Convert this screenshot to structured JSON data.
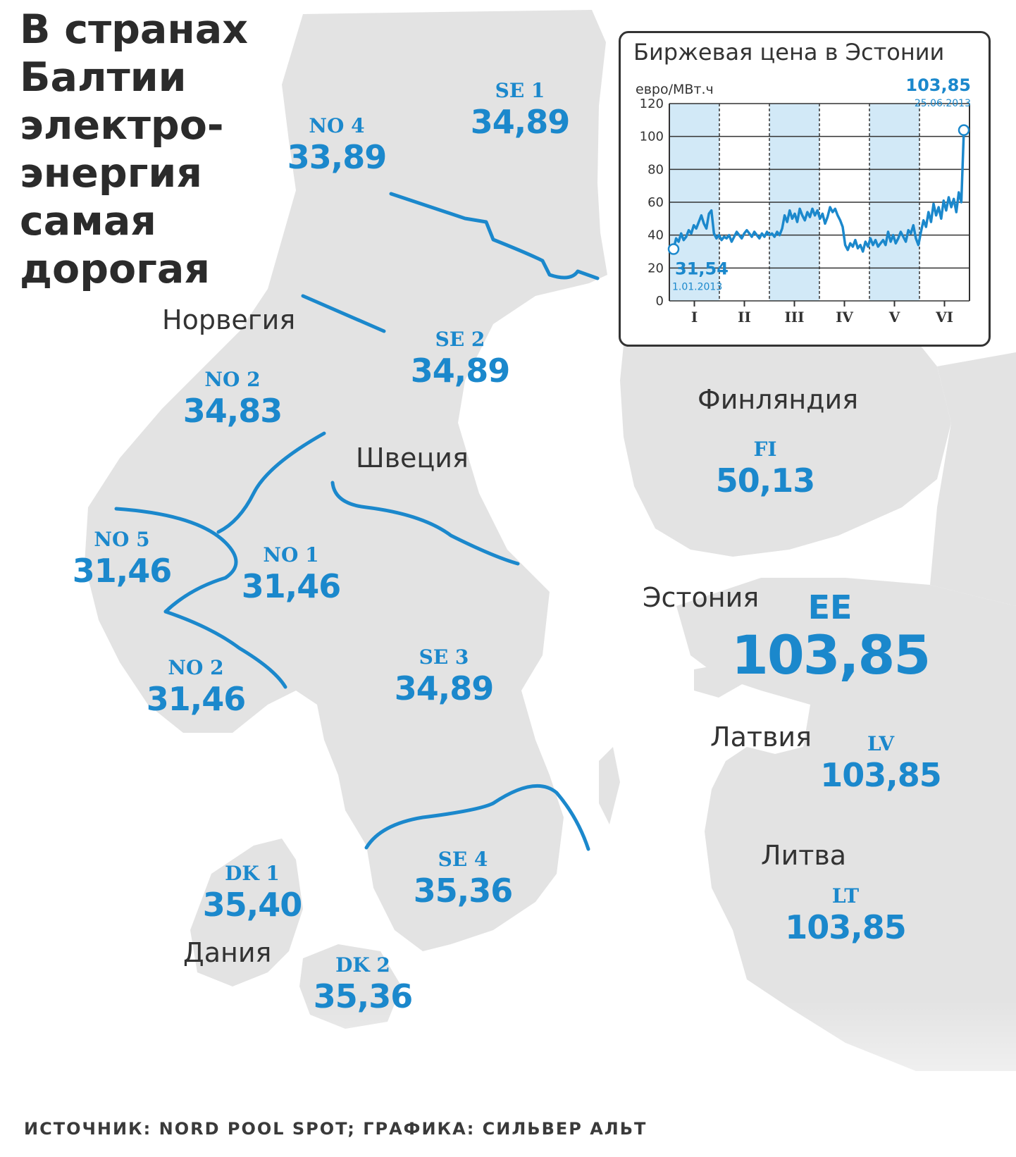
{
  "title": {
    "lines": [
      "В странах",
      "Балтии",
      "электро-",
      "энергия",
      "самая",
      "дорогая"
    ]
  },
  "countries": [
    {
      "id": "norway",
      "label": "Норвегия"
    },
    {
      "id": "sweden",
      "label": "Швеция"
    },
    {
      "id": "finland",
      "label": "Финляндия"
    },
    {
      "id": "estonia",
      "label": "Эстония"
    },
    {
      "id": "latvia",
      "label": "Латвия"
    },
    {
      "id": "lithuania",
      "label": "Литва"
    },
    {
      "id": "denmark",
      "label": "Дания"
    }
  ],
  "zones": [
    {
      "id": "no4",
      "code": "NO 4",
      "price": "33,89"
    },
    {
      "id": "se1",
      "code": "SE 1",
      "price": "34,89"
    },
    {
      "id": "se2",
      "code": "SE 2",
      "price": "34,89"
    },
    {
      "id": "no2-north",
      "code": "NO 2",
      "price": "34,83"
    },
    {
      "id": "fi",
      "code": "FI",
      "price": "50,13"
    },
    {
      "id": "no5",
      "code": "NO 5",
      "price": "31,46"
    },
    {
      "id": "no1",
      "code": "NO 1",
      "price": "31,46"
    },
    {
      "id": "ee",
      "code": "EE",
      "price": "103,85"
    },
    {
      "id": "no2-south",
      "code": "NO 2",
      "price": "31,46"
    },
    {
      "id": "se3",
      "code": "SE 3",
      "price": "34,89"
    },
    {
      "id": "lv",
      "code": "LV",
      "price": "103,85"
    },
    {
      "id": "lt",
      "code": "LT",
      "price": "103,85"
    },
    {
      "id": "se4",
      "code": "SE 4",
      "price": "35,36"
    },
    {
      "id": "dk1",
      "code": "DK 1",
      "price": "35,40"
    },
    {
      "id": "dk2",
      "code": "DK 2",
      "price": "35,36"
    }
  ],
  "colors": {
    "land": "#e3e3e3",
    "sea": "#ffffff",
    "border": "#1b88cc",
    "price": "#1b88cc",
    "text": "#333333",
    "chart_band": "#d2e9f7",
    "chart_line": "#1b88cc"
  },
  "source": "ИСТОЧНИК: NORD POOL SPOT; ГРАФИКА: СИЛЬВЕР АЛЬТ",
  "chart_data": {
    "type": "line",
    "title": "Биржевая цена в Эстонии",
    "ylabel": "евро/МВт.ч",
    "xlabel": "",
    "ylim": [
      0,
      120
    ],
    "yticks": [
      0,
      20,
      40,
      60,
      80,
      100,
      120
    ],
    "month_ticks": [
      "I",
      "II",
      "III",
      "IV",
      "V",
      "VI"
    ],
    "shaded_months": [
      "I",
      "III",
      "V"
    ],
    "grid": true,
    "start_label": {
      "value": "31,54",
      "date": "1.01.2013"
    },
    "end_label": {
      "value": "103,85",
      "date": "25.06.2013"
    },
    "series": [
      {
        "values": [
          31.5,
          38,
          36,
          41,
          37,
          39,
          43,
          41,
          46,
          44,
          48,
          52,
          47,
          44,
          53,
          55,
          41,
          38,
          40,
          37,
          39,
          38,
          40,
          36,
          39,
          42,
          40,
          38,
          41,
          43,
          41,
          39,
          42,
          40,
          38,
          41,
          39,
          42,
          40,
          41,
          39,
          42,
          40,
          44,
          52,
          48,
          55,
          50,
          53,
          48,
          56,
          52,
          49,
          54,
          51,
          56,
          52,
          55,
          50,
          53,
          47,
          51,
          57,
          54,
          56,
          52,
          49,
          45,
          34,
          31,
          35,
          33,
          37,
          32,
          34,
          30,
          36,
          33,
          38,
          34,
          37,
          33,
          35,
          37,
          34,
          42,
          36,
          40,
          35,
          38,
          42,
          39,
          36,
          43,
          41,
          46,
          38,
          34,
          42,
          49,
          45,
          54,
          48,
          59,
          52,
          57,
          50,
          61,
          55,
          63,
          57,
          62,
          54,
          66,
          60,
          103.85
        ]
      }
    ]
  }
}
